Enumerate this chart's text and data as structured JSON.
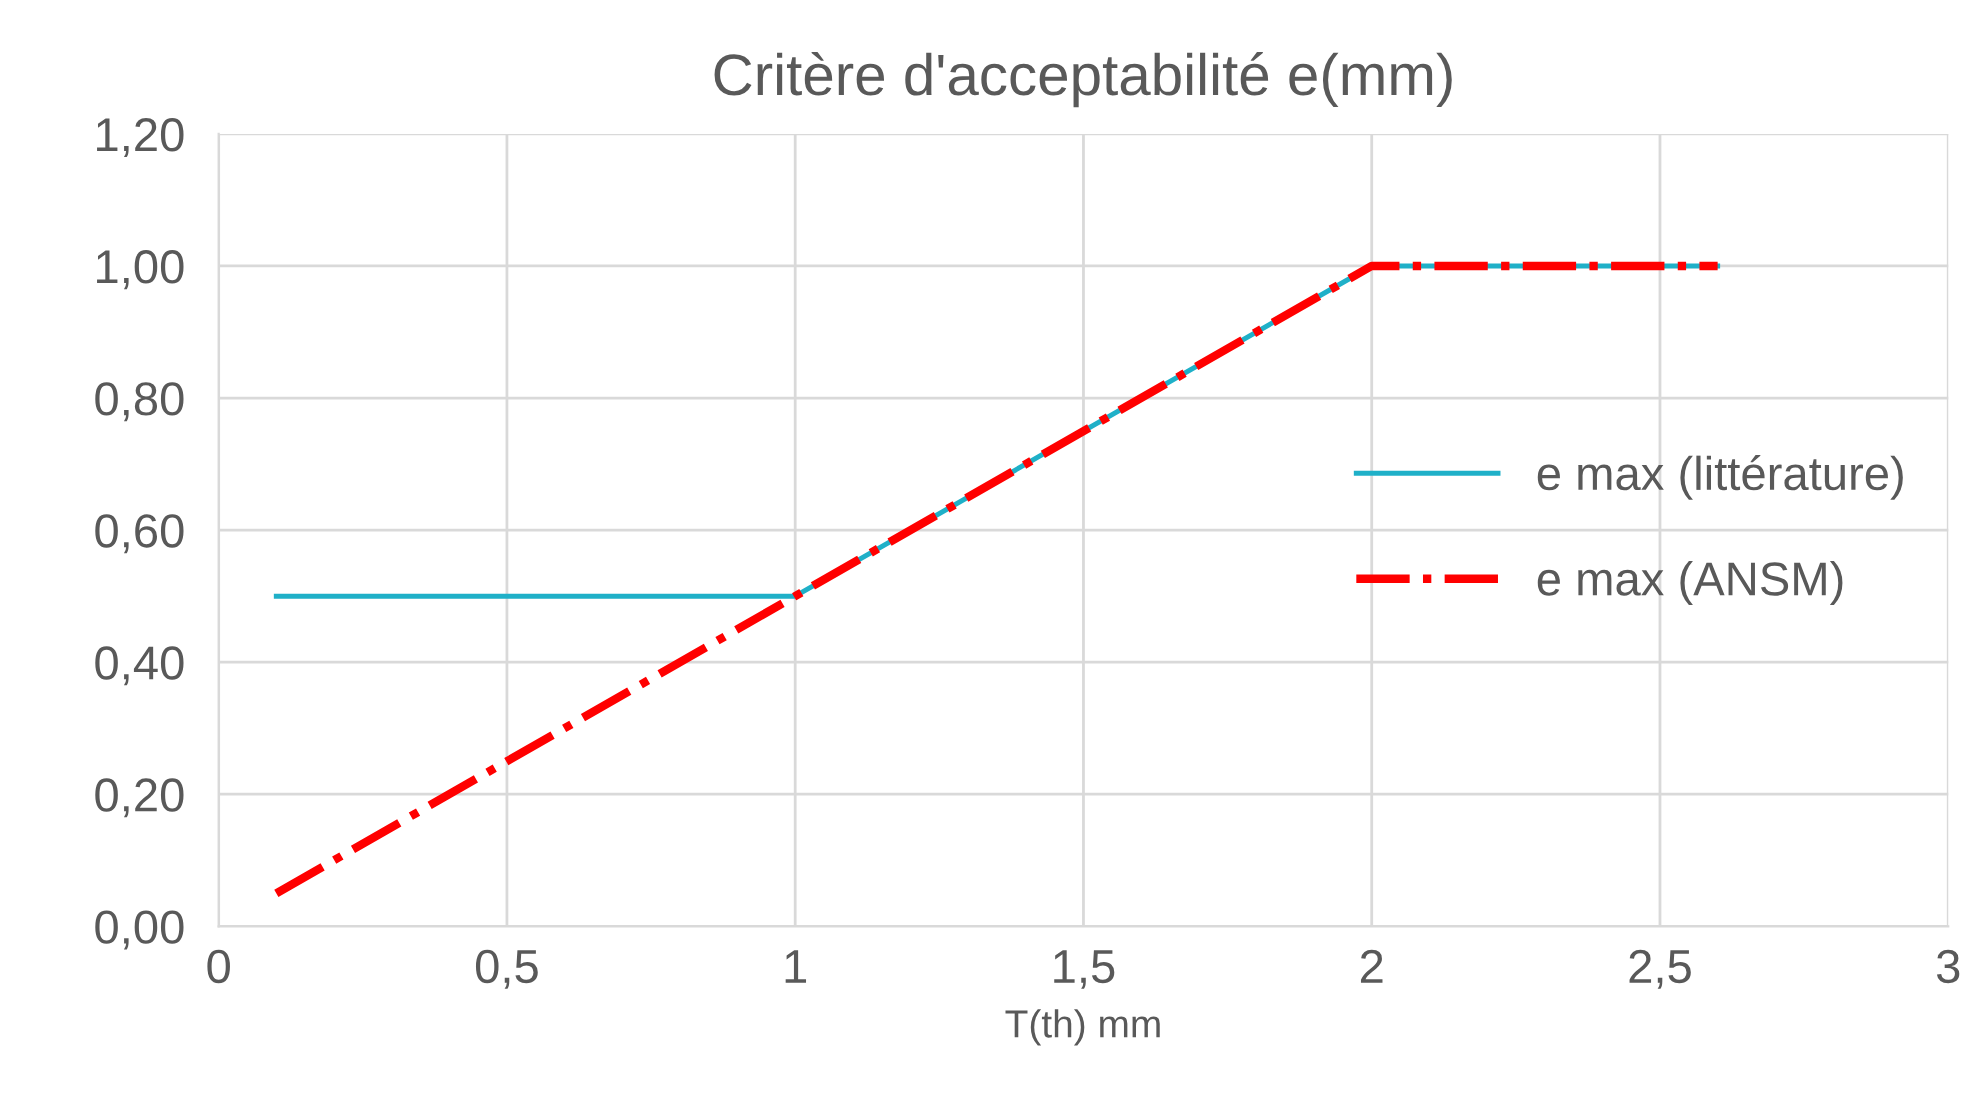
{
  "chart_data": {
    "type": "line",
    "title": "Critère d'acceptabilité e(mm)",
    "xlabel": "T(th) mm",
    "series": [
      {
        "name": "e max (littérature)",
        "color": "#1fb0c8",
        "x": [
          0.1,
          1,
          2,
          2.6
        ],
        "values": [
          0.5,
          0.5,
          1.0,
          1.0
        ],
        "line_style": "solid"
      },
      {
        "name": "e max (ANSM)",
        "color": "#ff0000",
        "x": [
          0.1,
          1,
          2,
          2.6
        ],
        "values": [
          0.05,
          0.5,
          1.0,
          1.0
        ],
        "line_style": "dashdot"
      }
    ],
    "xlim": [
      0,
      3
    ],
    "ylim": [
      0,
      1.2
    ],
    "xticks": [
      0,
      {
        "value": 0.5,
        "label": "0,5"
      },
      1,
      {
        "value": 1.5,
        "label": "1,5"
      },
      2,
      {
        "value": 2.5,
        "label": "2,5"
      },
      3
    ],
    "yticks": [
      {
        "value": 0,
        "label": "0,00"
      },
      {
        "value": 0.2,
        "label": "0,20"
      },
      {
        "value": 0.4,
        "label": "0,40"
      },
      {
        "value": 0.6,
        "label": "0,60"
      },
      {
        "value": 0.8,
        "label": "0,80"
      },
      {
        "value": 1.0,
        "label": "1,00"
      },
      {
        "value": 1.2,
        "label": "1,20"
      }
    ],
    "grid": true,
    "legend": "center right",
    "marker": "none"
  }
}
